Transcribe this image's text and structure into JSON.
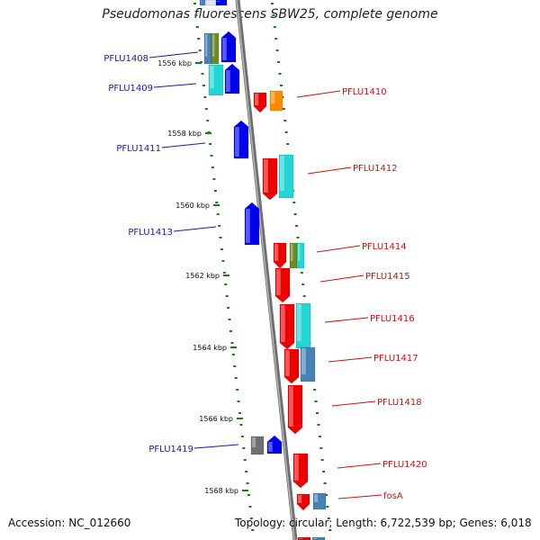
{
  "title": "Pseudomonas fluorescens SBW25, complete genome",
  "accession": "Accession: NC_012660",
  "topology": "Topology: circular; Length: 6,722,539 bp; Genes: 6,018",
  "colors": {
    "label_left": "#1a1aa6",
    "label_right": "#cc1111",
    "tick": "#1f7a1f",
    "backbone": "#8a8a8a",
    "red": "#ee0000",
    "blue": "#0000ee",
    "cyan": "#22d6d6",
    "steelblue": "#4682b4",
    "orange": "#ff8c00",
    "olive": "#6b8e23",
    "gray": "#707070"
  },
  "kbp_labels": [
    "1556 kbp",
    "1558 kbp",
    "1560 kbp",
    "1562 kbp",
    "1564 kbp",
    "1566 kbp",
    "1568 kbp"
  ],
  "left_labels": [
    "PFLU1408",
    "PFLU1409",
    "PFLU1411",
    "PFLU1413",
    "PFLU1419"
  ],
  "right_labels": [
    "PFLU1410",
    "PFLU1412",
    "PFLU1414",
    "PFLU1415",
    "PFLU1416",
    "PFLU1417",
    "PFLU1418",
    "PFLU1420",
    "fosA"
  ]
}
